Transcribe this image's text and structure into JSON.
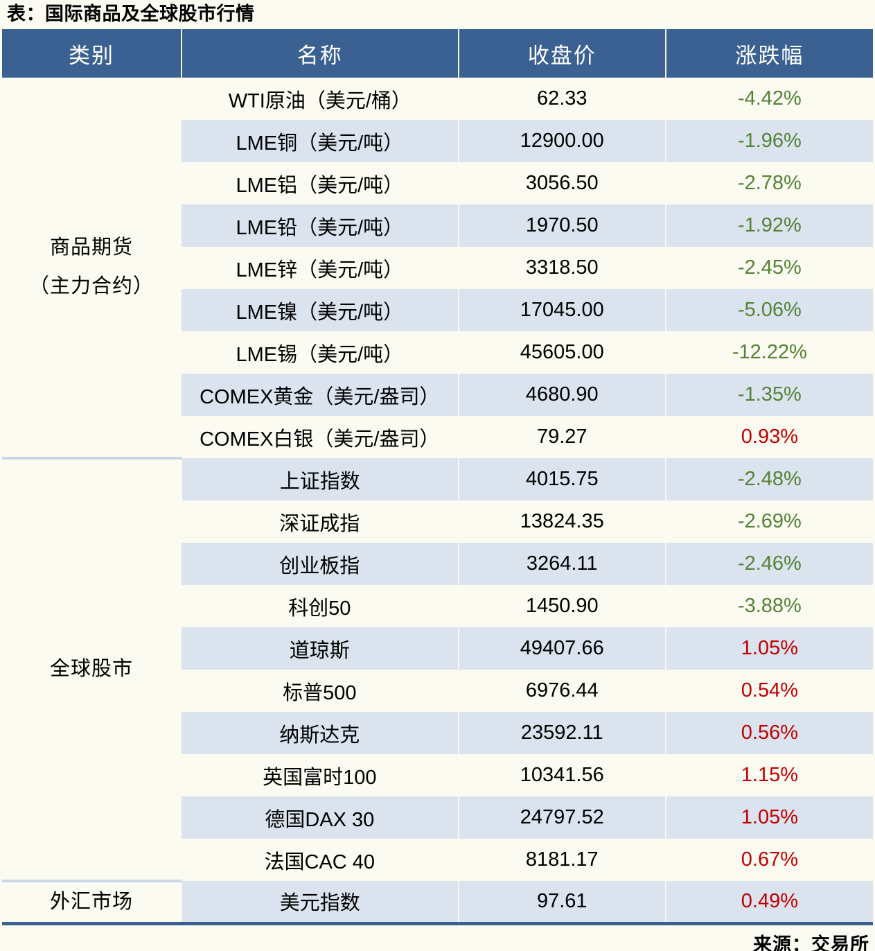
{
  "title": "表：国际商品及全球股市行情",
  "source": "来源：交易所",
  "columns": {
    "category": "类别",
    "name": "名称",
    "close": "收盘价",
    "change": "涨跌幅"
  },
  "colors": {
    "header_bg": "#3a6191",
    "alt_row": "#dbe3ee",
    "page_bg": "#fcfbf2",
    "down_green": "#548235",
    "up_red": "#c00000",
    "section_divider": "#c9d7e8",
    "bottom_border": "#3a6191"
  },
  "sections": [
    {
      "category": "商品期货\n（主力合约）",
      "rows": [
        {
          "name": "WTI原油（美元/桶）",
          "close": "62.33",
          "change": "-4.42%"
        },
        {
          "name": "LME铜（美元/吨）",
          "close": "12900.00",
          "change": "-1.96%"
        },
        {
          "name": "LME铝（美元/吨）",
          "close": "3056.50",
          "change": "-2.78%"
        },
        {
          "name": "LME铅（美元/吨）",
          "close": "1970.50",
          "change": "-1.92%"
        },
        {
          "name": "LME锌（美元/吨）",
          "close": "3318.50",
          "change": "-2.45%"
        },
        {
          "name": "LME镍（美元/吨）",
          "close": "17045.00",
          "change": "-5.06%"
        },
        {
          "name": "LME锡（美元/吨）",
          "close": "45605.00",
          "change": "-12.22%"
        },
        {
          "name": "COMEX黄金（美元/盎司）",
          "close": "4680.90",
          "change": "-1.35%"
        },
        {
          "name": "COMEX白银（美元/盎司）",
          "close": "79.27",
          "change": "0.93%"
        }
      ]
    },
    {
      "category": "全球股市",
      "rows": [
        {
          "name": "上证指数",
          "close": "4015.75",
          "change": "-2.48%"
        },
        {
          "name": "深证成指",
          "close": "13824.35",
          "change": "-2.69%"
        },
        {
          "name": "创业板指",
          "close": "3264.11",
          "change": "-2.46%"
        },
        {
          "name": "科创50",
          "close": "1450.90",
          "change": "-3.88%"
        },
        {
          "name": "道琼斯",
          "close": "49407.66",
          "change": "1.05%"
        },
        {
          "name": "标普500",
          "close": "6976.44",
          "change": "0.54%"
        },
        {
          "name": "纳斯达克",
          "close": "23592.11",
          "change": "0.56%"
        },
        {
          "name": "英国富时100",
          "close": "10341.56",
          "change": "1.15%"
        },
        {
          "name": "德国DAX 30",
          "close": "24797.52",
          "change": "1.05%"
        },
        {
          "name": "法国CAC 40",
          "close": "8181.17",
          "change": "0.67%"
        }
      ]
    },
    {
      "category": "外汇市场",
      "rows": [
        {
          "name": "美元指数",
          "close": "97.61",
          "change": "0.49%"
        }
      ]
    }
  ],
  "chart_data": {
    "type": "table",
    "title": "表：国际商品及全球股市行情",
    "columns": [
      "类别",
      "名称",
      "收盘价",
      "涨跌幅"
    ],
    "rows": [
      [
        "商品期货（主力合约）",
        "WTI原油（美元/桶）",
        62.33,
        "-4.42%"
      ],
      [
        "商品期货（主力合约）",
        "LME铜（美元/吨）",
        12900.0,
        "-1.96%"
      ],
      [
        "商品期货（主力合约）",
        "LME铝（美元/吨）",
        3056.5,
        "-2.78%"
      ],
      [
        "商品期货（主力合约）",
        "LME铅（美元/吨）",
        1970.5,
        "-1.92%"
      ],
      [
        "商品期货（主力合约）",
        "LME锌（美元/吨）",
        3318.5,
        "-2.45%"
      ],
      [
        "商品期货（主力合约）",
        "LME镍（美元/吨）",
        17045.0,
        "-5.06%"
      ],
      [
        "商品期货（主力合约）",
        "LME锡（美元/吨）",
        45605.0,
        "-12.22%"
      ],
      [
        "商品期货（主力合约）",
        "COMEX黄金（美元/盎司）",
        4680.9,
        "-1.35%"
      ],
      [
        "商品期货（主力合约）",
        "COMEX白银（美元/盎司）",
        79.27,
        "0.93%"
      ],
      [
        "全球股市",
        "上证指数",
        4015.75,
        "-2.48%"
      ],
      [
        "全球股市",
        "深证成指",
        13824.35,
        "-2.69%"
      ],
      [
        "全球股市",
        "创业板指",
        3264.11,
        "-2.46%"
      ],
      [
        "全球股市",
        "科创50",
        1450.9,
        "-3.88%"
      ],
      [
        "全球股市",
        "道琼斯",
        49407.66,
        "1.05%"
      ],
      [
        "全球股市",
        "标普500",
        6976.44,
        "0.54%"
      ],
      [
        "全球股市",
        "纳斯达克",
        23592.11,
        "0.56%"
      ],
      [
        "全球股市",
        "英国富时100",
        10341.56,
        "1.15%"
      ],
      [
        "全球股市",
        "德国DAX 30",
        24797.52,
        "1.05%"
      ],
      [
        "全球股市",
        "法国CAC 40",
        8181.17,
        "0.67%"
      ],
      [
        "外汇市场",
        "美元指数",
        97.61,
        "0.49%"
      ]
    ],
    "legend_note": "negative changes rendered green (#548235), positive changes rendered red (#c00000)",
    "source": "来源：交易所"
  }
}
